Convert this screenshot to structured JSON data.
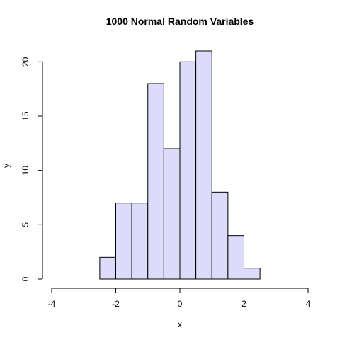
{
  "chart_data": {
    "type": "bar",
    "title": "1000 Normal Random Variables",
    "xlabel": "x",
    "ylabel": "y",
    "bin_edges": [
      -2.5,
      -2.0,
      -1.5,
      -1.0,
      -0.5,
      0.0,
      0.5,
      1.0,
      1.5,
      2.0,
      2.5
    ],
    "values": [
      2,
      7,
      7,
      18,
      12,
      20,
      21,
      8,
      4,
      1
    ],
    "xlim": [
      -4,
      4
    ],
    "ylim": [
      0,
      21
    ],
    "x_ticks": [
      -4,
      -2,
      0,
      2,
      4
    ],
    "y_ticks": [
      0,
      5,
      10,
      15,
      20
    ],
    "x_tick_labels": [
      "-4",
      "-2",
      "0",
      "2",
      "4"
    ],
    "y_tick_labels": [
      "0",
      "5",
      "10",
      "15",
      "20"
    ],
    "bar_fill": "#dcdcfa",
    "bar_stroke": "#000000",
    "grid": false
  }
}
